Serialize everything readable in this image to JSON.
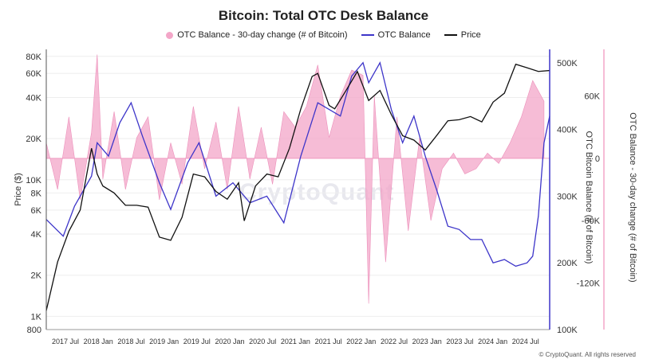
{
  "title": "Bitcoin: Total OTC Desk Balance",
  "watermark": "CryptoQuant",
  "copyright": "© CryptoQuant. All rights reserved",
  "colors": {
    "change": "#f3a6c8",
    "balance": "#3d35c9",
    "price": "#111111"
  },
  "chart_data": {
    "type": "line",
    "title": "Bitcoin: Total OTC Desk Balance",
    "x_tick_labels": [
      "2017 Jul",
      "2018 Jan",
      "2018 Jul",
      "2019 Jan",
      "2019 Jul",
      "2020 Jan",
      "2020 Jul",
      "2021 Jan",
      "2021 Jul",
      "2022 Jan",
      "2022 Jul",
      "2023 Jan",
      "2023 Jul",
      "2024 Jan",
      "2024 Jul"
    ],
    "x_range": [
      "2017-04",
      "2024-09"
    ],
    "legend_placement": "top-center",
    "axes": {
      "price": {
        "label": "Price ($)",
        "scale": "log",
        "range": [
          800,
          90000
        ],
        "ticks": [
          800,
          1000,
          2000,
          4000,
          6000,
          8000,
          10000,
          20000,
          40000,
          60000,
          80000
        ],
        "tick_labels": [
          "800",
          "1K",
          "2K",
          "4K",
          "6K",
          "8K",
          "10K",
          "20K",
          "40K",
          "60K",
          "80K"
        ]
      },
      "balance": {
        "label": "OTC Bitcoin Balance (# of Bitcoin)",
        "range": [
          100000,
          520000
        ],
        "ticks": [
          100000,
          200000,
          300000,
          400000,
          500000
        ],
        "tick_labels": [
          "100K",
          "200K",
          "300K",
          "400K",
          "500K"
        ]
      },
      "change": {
        "label": "OTC Balance - 30-day change (# of Bitcoin)",
        "range": [
          -165000,
          105000
        ],
        "ticks": [
          -120000,
          -60000,
          0,
          60000
        ],
        "tick_labels": [
          "-120K",
          "-60K",
          "0",
          "60K"
        ]
      }
    },
    "series": [
      {
        "name": "OTC Balance - 30-day change (# of Bitcoin)",
        "axis": "change",
        "style": "area",
        "x": [
          "2017-04",
          "2017-06",
          "2017-08",
          "2017-10",
          "2017-12",
          "2018-01",
          "2018-02",
          "2018-04",
          "2018-06",
          "2018-08",
          "2018-10",
          "2018-12",
          "2019-02",
          "2019-04",
          "2019-06",
          "2019-08",
          "2019-10",
          "2019-12",
          "2020-02",
          "2020-04",
          "2020-06",
          "2020-08",
          "2020-10",
          "2020-12",
          "2021-02",
          "2021-04",
          "2021-06",
          "2021-08",
          "2021-10",
          "2021-12",
          "2022-01",
          "2022-02",
          "2022-04",
          "2022-06",
          "2022-08",
          "2022-10",
          "2022-12",
          "2023-02",
          "2023-04",
          "2023-06",
          "2023-08",
          "2023-10",
          "2023-12",
          "2024-02",
          "2024-04",
          "2024-06",
          "2024-08"
        ],
        "values": [
          15000,
          -30000,
          40000,
          -40000,
          25000,
          100000,
          -20000,
          45000,
          -30000,
          20000,
          40000,
          -40000,
          15000,
          -25000,
          50000,
          -10000,
          35000,
          -30000,
          50000,
          -20000,
          30000,
          -25000,
          45000,
          30000,
          50000,
          90000,
          20000,
          60000,
          85000,
          80000,
          -140000,
          60000,
          -100000,
          40000,
          -70000,
          20000,
          -60000,
          -10000,
          5000,
          -15000,
          -10000,
          5000,
          -5000,
          15000,
          40000,
          75000,
          55000
        ]
      },
      {
        "name": "OTC Balance",
        "axis": "balance",
        "style": "line",
        "x": [
          "2017-04",
          "2017-07",
          "2017-09",
          "2017-12",
          "2018-01",
          "2018-03",
          "2018-05",
          "2018-07",
          "2018-09",
          "2018-12",
          "2019-02",
          "2019-05",
          "2019-07",
          "2019-10",
          "2020-01",
          "2020-04",
          "2020-07",
          "2020-10",
          "2021-01",
          "2021-04",
          "2021-06",
          "2021-08",
          "2021-10",
          "2021-12",
          "2022-01",
          "2022-03",
          "2022-05",
          "2022-07",
          "2022-09",
          "2022-11",
          "2023-01",
          "2023-03",
          "2023-05",
          "2023-07",
          "2023-09",
          "2023-11",
          "2024-01",
          "2024-03",
          "2024-05",
          "2024-06",
          "2024-07",
          "2024-08",
          "2024-09"
        ],
        "values": [
          265000,
          240000,
          285000,
          330000,
          380000,
          360000,
          410000,
          440000,
          390000,
          320000,
          280000,
          350000,
          380000,
          300000,
          320000,
          290000,
          300000,
          260000,
          360000,
          440000,
          430000,
          420000,
          480000,
          500000,
          470000,
          500000,
          430000,
          380000,
          420000,
          360000,
          310000,
          255000,
          250000,
          235000,
          235000,
          200000,
          205000,
          195000,
          200000,
          210000,
          270000,
          380000,
          420000
        ]
      },
      {
        "name": "Price",
        "axis": "price",
        "style": "line",
        "x": [
          "2017-04",
          "2017-06",
          "2017-08",
          "2017-10",
          "2017-12",
          "2018-01",
          "2018-02",
          "2018-04",
          "2018-06",
          "2018-08",
          "2018-10",
          "2018-12",
          "2019-02",
          "2019-04",
          "2019-06",
          "2019-08",
          "2019-10",
          "2019-12",
          "2020-02",
          "2020-03",
          "2020-05",
          "2020-07",
          "2020-09",
          "2020-11",
          "2021-01",
          "2021-03",
          "2021-04",
          "2021-06",
          "2021-07",
          "2021-09",
          "2021-11",
          "2022-01",
          "2022-03",
          "2022-05",
          "2022-07",
          "2022-09",
          "2022-11",
          "2023-01",
          "2023-03",
          "2023-05",
          "2023-07",
          "2023-09",
          "2023-11",
          "2024-01",
          "2024-03",
          "2024-05",
          "2024-07",
          "2024-09"
        ],
        "values": [
          1100,
          2500,
          4200,
          6000,
          17000,
          11000,
          9000,
          8000,
          6500,
          6500,
          6300,
          3800,
          3600,
          5300,
          11000,
          10500,
          8200,
          7200,
          9500,
          5000,
          9000,
          11000,
          10500,
          17000,
          33000,
          57000,
          60000,
          35000,
          33000,
          45000,
          62000,
          38000,
          45000,
          30000,
          21000,
          19500,
          16500,
          21000,
          27000,
          27500,
          29000,
          26500,
          37000,
          43000,
          70000,
          66000,
          62000,
          63000
        ]
      }
    ]
  }
}
